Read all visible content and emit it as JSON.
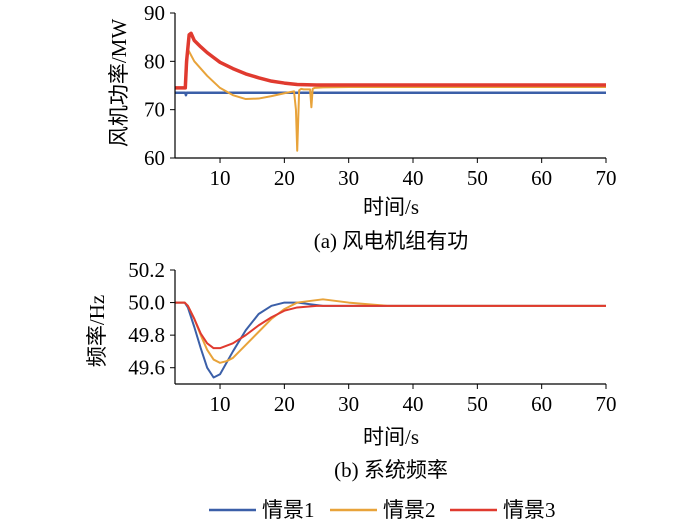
{
  "colors": {
    "s1": "#3b5fa8",
    "s2": "#e8a33a",
    "s3": "#e03a2f"
  },
  "legend": [
    {
      "label": "情景1",
      "color": "#3b5fa8"
    },
    {
      "label": "情景2",
      "color": "#e8a33a"
    },
    {
      "label": "情景3",
      "color": "#e03a2f"
    }
  ],
  "chart_data": [
    {
      "type": "line",
      "caption": "(a)  风电机组有功",
      "xlabel": "时间/s",
      "ylabel": "风机功率/MW",
      "xlim": [
        3,
        70
      ],
      "ylim": [
        60,
        90
      ],
      "xticks": [
        10,
        20,
        30,
        40,
        50,
        60,
        70
      ],
      "yticks": [
        60,
        70,
        80,
        90
      ],
      "series": [
        {
          "key": "s1",
          "color": "#3b5fa8",
          "x": [
            3,
            4.6,
            4.7,
            4.8,
            5,
            20,
            40,
            70
          ],
          "y": [
            73.5,
            73.5,
            73.0,
            73.5,
            73.5,
            73.5,
            73.5,
            73.5
          ]
        },
        {
          "key": "s2",
          "color": "#e8a33a",
          "x": [
            3,
            4.6,
            4.8,
            5.0,
            6,
            8,
            10,
            12,
            14,
            16,
            18,
            20,
            21.5,
            21.8,
            22.0,
            22.3,
            22.6,
            23,
            24,
            24.2,
            24.4,
            24.7,
            26,
            30,
            70
          ],
          "y": [
            74.5,
            74.5,
            78,
            82.5,
            80,
            77,
            74.5,
            73,
            72.2,
            72.3,
            72.8,
            73.4,
            73.8,
            70,
            61.5,
            74,
            74.3,
            74.2,
            74.2,
            70.5,
            74.3,
            74.5,
            74.6,
            74.7,
            74.7
          ]
        },
        {
          "key": "s3",
          "color": "#e03a2f",
          "x": [
            3,
            4.6,
            4.8,
            5.2,
            5.5,
            6,
            7,
            8,
            9,
            10,
            12,
            14,
            16,
            18,
            20,
            22,
            25,
            30,
            40,
            70
          ],
          "y": [
            74.5,
            74.5,
            80,
            85.5,
            85.8,
            84.3,
            83,
            81.8,
            80.8,
            79.8,
            78.5,
            77.4,
            76.6,
            75.9,
            75.5,
            75.2,
            75.1,
            75.1,
            75.1,
            75.1
          ]
        }
      ]
    },
    {
      "type": "line",
      "caption": "(b)  系统频率",
      "xlabel": "时间/s",
      "ylabel": "频率/Hz",
      "xlim": [
        3,
        70
      ],
      "ylim": [
        49.5,
        50.2
      ],
      "xticks": [
        10,
        20,
        30,
        40,
        50,
        60,
        70
      ],
      "yticks": [
        49.6,
        49.8,
        50.0,
        50.2
      ],
      "ytick_labels": [
        "49.6",
        "49.8",
        "50.0",
        "50.2"
      ],
      "series": [
        {
          "key": "s1",
          "color": "#3b5fa8",
          "x": [
            3,
            4.5,
            5,
            6,
            7,
            8,
            9,
            10,
            12,
            14,
            16,
            18,
            20,
            22,
            24,
            26,
            30,
            40,
            70
          ],
          "y": [
            50.0,
            50.0,
            49.97,
            49.85,
            49.72,
            49.6,
            49.54,
            49.56,
            49.7,
            49.83,
            49.93,
            49.98,
            50.0,
            50.0,
            49.99,
            49.98,
            49.98,
            49.98,
            49.98
          ]
        },
        {
          "key": "s2",
          "color": "#e8a33a",
          "x": [
            3,
            4.5,
            5,
            6,
            7,
            8,
            9,
            10,
            11,
            12,
            14,
            16,
            18,
            20,
            22,
            24,
            26,
            28,
            30,
            33,
            36,
            40,
            70
          ],
          "y": [
            50.0,
            50.0,
            49.98,
            49.9,
            49.8,
            49.71,
            49.65,
            49.63,
            49.64,
            49.66,
            49.74,
            49.82,
            49.9,
            49.96,
            50.0,
            50.01,
            50.02,
            50.01,
            50.0,
            49.99,
            49.98,
            49.98,
            49.98
          ]
        },
        {
          "key": "s3",
          "color": "#e03a2f",
          "x": [
            3,
            4.5,
            5,
            6,
            7,
            8,
            9,
            10,
            12,
            14,
            16,
            18,
            20,
            22,
            25,
            30,
            40,
            70
          ],
          "y": [
            50.0,
            50.0,
            49.98,
            49.9,
            49.81,
            49.75,
            49.72,
            49.72,
            49.75,
            49.8,
            49.86,
            49.91,
            49.95,
            49.97,
            49.98,
            49.98,
            49.98,
            49.98
          ]
        }
      ]
    }
  ]
}
